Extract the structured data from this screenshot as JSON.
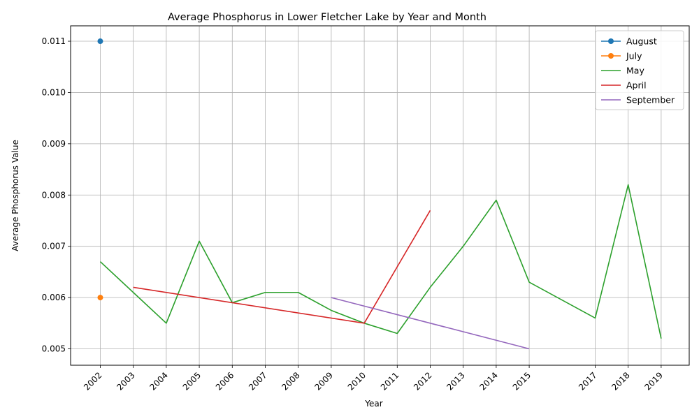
{
  "chart_data": {
    "type": "line",
    "title": "Average Phosphorus in Lower Fletcher Lake by Year and Month",
    "xlabel": "Year",
    "ylabel": "Average Phosphorus Value",
    "xlim": [
      2001.1,
      2019.85
    ],
    "ylim": [
      0.00468,
      0.0113
    ],
    "x_ticks": [
      2002,
      2003,
      2004,
      2005,
      2006,
      2007,
      2008,
      2009,
      2010,
      2011,
      2012,
      2013,
      2014,
      2015,
      2017,
      2018,
      2019
    ],
    "y_ticks": [
      0.005,
      0.006,
      0.007,
      0.008,
      0.009,
      0.01,
      0.011
    ],
    "grid": true,
    "legend_position": "top-right",
    "series": [
      {
        "name": "August",
        "color": "#1f77b4",
        "marker": "circle",
        "x": [
          2002
        ],
        "y": [
          0.011
        ]
      },
      {
        "name": "July",
        "color": "#ff7f0e",
        "marker": "circle",
        "x": [
          2002
        ],
        "y": [
          0.006
        ]
      },
      {
        "name": "May",
        "color": "#2ca02c",
        "marker": "none",
        "x": [
          2002,
          2003,
          2004,
          2005,
          2006,
          2007,
          2008,
          2009,
          2010,
          2011,
          2012,
          2013,
          2014,
          2015,
          2017,
          2018,
          2019
        ],
        "y": [
          0.0067,
          0.0061,
          0.0055,
          0.0071,
          0.0059,
          0.0061,
          0.0061,
          0.00575,
          0.0055,
          0.0053,
          0.0062,
          0.007,
          0.0079,
          0.0063,
          0.0056,
          0.0082,
          0.0052
        ]
      },
      {
        "name": "April",
        "color": "#d62728",
        "marker": "none",
        "x": [
          2003,
          2010,
          2012
        ],
        "y": [
          0.0062,
          0.0055,
          0.0077
        ]
      },
      {
        "name": "September",
        "color": "#9467bd",
        "marker": "none",
        "x": [
          2009,
          2015
        ],
        "y": [
          0.006,
          0.005
        ]
      }
    ]
  }
}
